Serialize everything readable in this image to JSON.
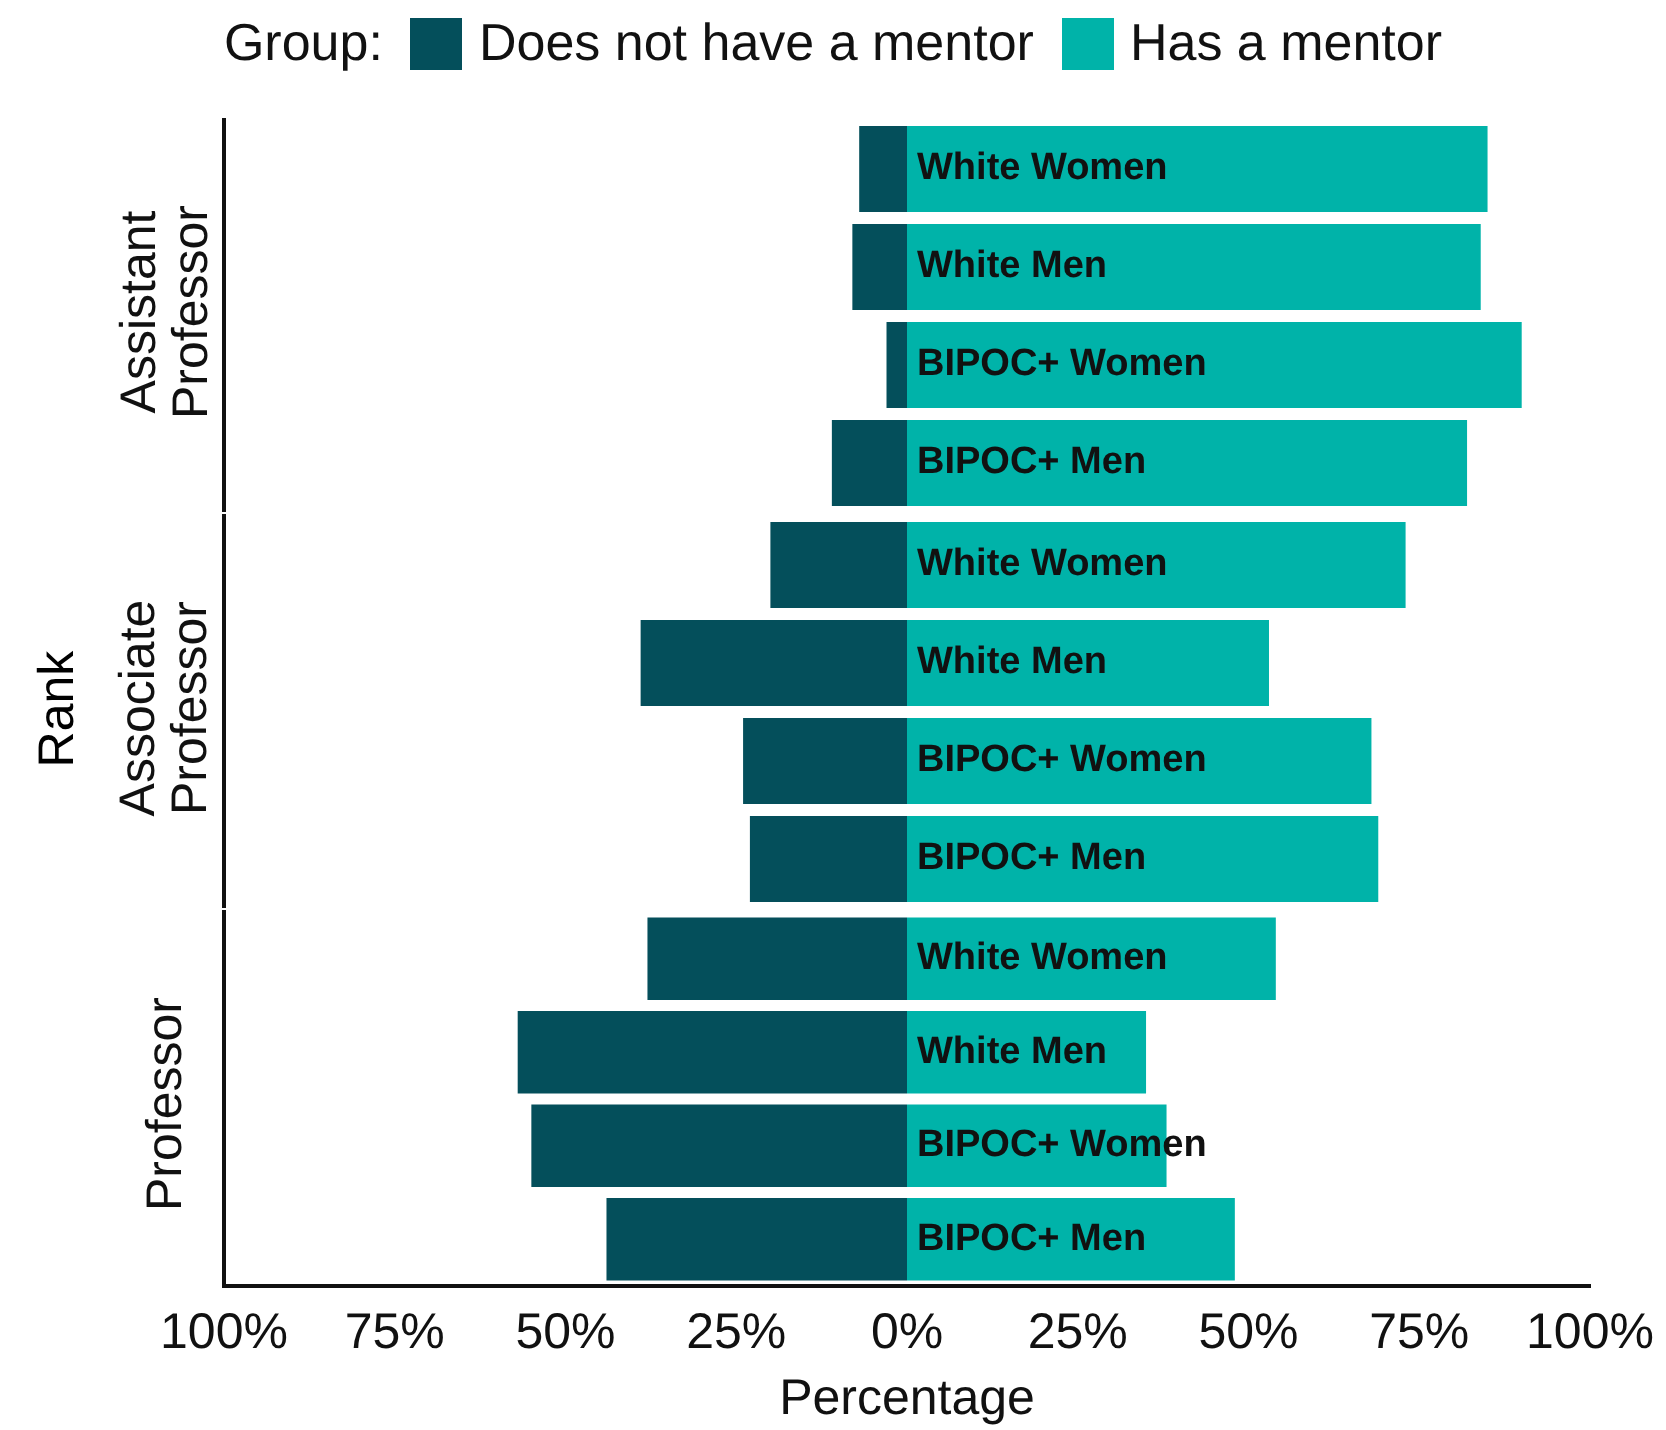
{
  "chart_data": [
    {
      "type": "bar",
      "orientation": "horizontal",
      "stacked": true,
      "ylabel": "Assistant Professor",
      "legend": "top",
      "legend_title": "Group:",
      "tick_labels": false,
      "categories": [
        "White Women",
        "White Men",
        "BIPOC+ Women",
        "BIPOC+ Men"
      ],
      "xlim": [
        -100,
        100
      ],
      "series": [
        {
          "name": "Does not have a mentor",
          "color": "#044f5b",
          "values": [
            -7,
            -8,
            -3,
            -11
          ]
        },
        {
          "name": "Has a mentor",
          "color": "#00b3a9",
          "values": [
            85,
            84,
            90,
            82
          ]
        }
      ]
    },
    {
      "type": "bar",
      "orientation": "horizontal",
      "stacked": true,
      "ylabel": "Associate Professor",
      "annotations": [
        "Rank"
      ],
      "tick_labels": false,
      "categories": [
        "White Women",
        "White Men",
        "BIPOC+ Women",
        "BIPOC+ Men"
      ],
      "xlim": [
        -100,
        100
      ],
      "series": [
        {
          "color": "#044f5b",
          "values": [
            -20,
            -39,
            -24,
            -23
          ]
        },
        {
          "color": "#00b3a9",
          "values": [
            73,
            53,
            68,
            69
          ]
        }
      ]
    },
    {
      "type": "bar",
      "orientation": "horizontal",
      "stacked": true,
      "ylabel": "Professor",
      "xlabel": "Percentage",
      "tick_labels": "x",
      "categories": [
        "White Women",
        "White Men",
        "BIPOC+ Women",
        "BIPOC+ Men"
      ],
      "xlim": [
        -100,
        100
      ],
      "xticks": [
        {
          "value": -100,
          "label": "100%"
        },
        {
          "value": -75,
          "label": "75%"
        },
        {
          "value": -50,
          "label": "50%"
        },
        {
          "value": -25,
          "label": "25%"
        },
        {
          "value": 0,
          "label": "0%"
        },
        {
          "value": 25,
          "label": "25%"
        },
        {
          "value": 50,
          "label": "50%"
        },
        {
          "value": 75,
          "label": "75%"
        },
        {
          "value": 100,
          "label": "100%"
        }
      ],
      "series": [
        {
          "color": "#044f5b",
          "values": [
            -38,
            -57,
            -55,
            -44
          ]
        },
        {
          "color": "#00b3a9",
          "values": [
            54,
            35,
            38,
            48
          ]
        }
      ]
    }
  ]
}
